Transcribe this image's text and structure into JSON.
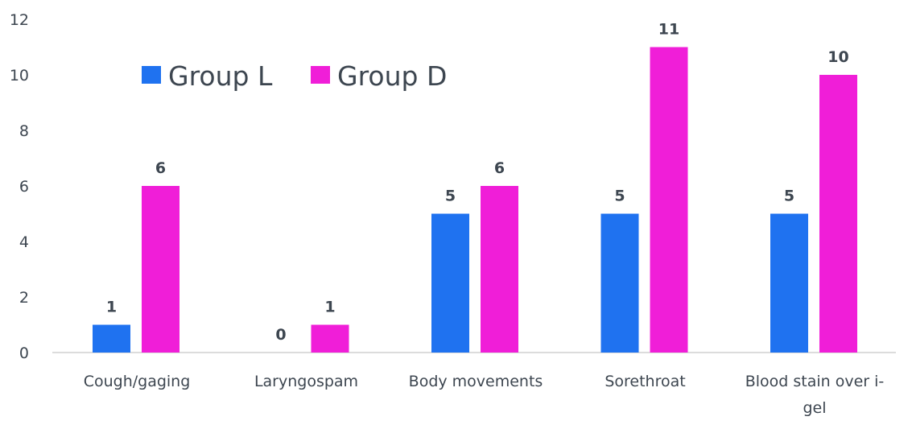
{
  "chart_data": {
    "type": "bar",
    "title": "",
    "xlabel": "",
    "ylabel": "",
    "ylim": [
      0,
      12
    ],
    "yticks": [
      0,
      2,
      4,
      6,
      8,
      10,
      12
    ],
    "grid": false,
    "legend_position": "top-left",
    "categories": [
      "Cough/gaging",
      "Laryngospam",
      "Body movements",
      "Sorethroat",
      "Blood stain over i-gel"
    ],
    "category_lines": [
      [
        "Cough/gaging"
      ],
      [
        "Laryngospam"
      ],
      [
        "Body movements"
      ],
      [
        "Sorethroat"
      ],
      [
        "Blood stain over i-",
        "gel"
      ]
    ],
    "series": [
      {
        "name": "Group L",
        "color": "#1f72f0",
        "values": [
          1,
          0,
          5,
          5,
          5
        ]
      },
      {
        "name": "Group D",
        "color": "#f01ed8",
        "values": [
          6,
          1,
          6,
          11,
          10
        ]
      }
    ]
  }
}
